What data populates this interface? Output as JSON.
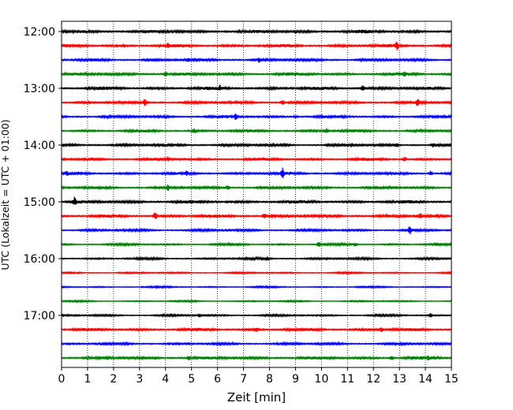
{
  "chart_data": {
    "type": "line",
    "title": "",
    "xlabel": "Zeit  [min]",
    "ylabel": "UTC (Lokalzeit = UTC + 01:00)",
    "xlim": [
      0,
      15
    ],
    "x_ticks": [
      0,
      1,
      2,
      3,
      4,
      5,
      6,
      7,
      8,
      9,
      10,
      11,
      12,
      13,
      14,
      15
    ],
    "x_tick_labels": [
      "0",
      "1",
      "2",
      "3",
      "4",
      "5",
      "6",
      "7",
      "8",
      "9",
      "10",
      "11",
      "12",
      "13",
      "14",
      "15"
    ],
    "y_tick_labels": [
      "12:00",
      "13:00",
      "14:00",
      "15:00",
      "16:00",
      "17:00"
    ],
    "y_tick_traces": [
      0,
      4,
      8,
      12,
      16,
      20
    ],
    "grid_x": true,
    "grid_style": "dotted",
    "trace_colors": [
      "#000000",
      "#ff0000",
      "#0000ff",
      "#008000"
    ],
    "traces": [
      {
        "start": "12:00",
        "color": "#000000",
        "amp": 2.4,
        "events": [
          {
            "t": 9.0,
            "a": 3
          }
        ]
      },
      {
        "start": "12:15",
        "color": "#ff0000",
        "amp": 2.2,
        "events": [
          {
            "t": 2.4,
            "a": 3
          },
          {
            "t": 4.1,
            "a": 5
          },
          {
            "t": 12.9,
            "a": 7
          }
        ]
      },
      {
        "start": "12:30",
        "color": "#0000ff",
        "amp": 2.0,
        "events": [
          {
            "t": 4.9,
            "a": 4
          },
          {
            "t": 7.6,
            "a": 4
          }
        ]
      },
      {
        "start": "12:45",
        "color": "#008000",
        "amp": 2.2,
        "events": [
          {
            "t": 4.0,
            "a": 4
          },
          {
            "t": 13.2,
            "a": 5
          }
        ]
      },
      {
        "start": "13:00",
        "color": "#000000",
        "amp": 2.3,
        "events": [
          {
            "t": 6.1,
            "a": 5
          },
          {
            "t": 11.6,
            "a": 5
          }
        ]
      },
      {
        "start": "13:15",
        "color": "#ff0000",
        "amp": 2.0,
        "events": [
          {
            "t": 3.2,
            "a": 6
          },
          {
            "t": 8.5,
            "a": 4
          },
          {
            "t": 13.7,
            "a": 6
          }
        ]
      },
      {
        "start": "13:30",
        "color": "#0000ff",
        "amp": 2.0,
        "events": [
          {
            "t": 6.7,
            "a": 5
          },
          {
            "t": 9.0,
            "a": 3
          }
        ]
      },
      {
        "start": "13:45",
        "color": "#008000",
        "amp": 2.0,
        "events": [
          {
            "t": 5.1,
            "a": 4
          },
          {
            "t": 10.2,
            "a": 4
          }
        ]
      },
      {
        "start": "14:00",
        "color": "#000000",
        "amp": 2.0,
        "events": [
          {
            "t": 12.9,
            "a": 3
          },
          {
            "t": 14.3,
            "a": 4
          }
        ]
      },
      {
        "start": "14:15",
        "color": "#ff0000",
        "amp": 2.0,
        "events": [
          {
            "t": 1.2,
            "a": 3
          },
          {
            "t": 4.1,
            "a": 4
          },
          {
            "t": 13.2,
            "a": 4
          }
        ]
      },
      {
        "start": "14:30",
        "color": "#0000ff",
        "amp": 2.0,
        "events": [
          {
            "t": 0.2,
            "a": 4
          },
          {
            "t": 4.8,
            "a": 4
          },
          {
            "t": 8.5,
            "a": 8
          },
          {
            "t": 14.2,
            "a": 4
          }
        ]
      },
      {
        "start": "14:45",
        "color": "#008000",
        "amp": 2.0,
        "events": [
          {
            "t": 4.1,
            "a": 5
          },
          {
            "t": 6.4,
            "a": 4
          }
        ]
      },
      {
        "start": "15:00",
        "color": "#000000",
        "amp": 2.3,
        "events": [
          {
            "t": 0.5,
            "a": 7
          },
          {
            "t": 9.5,
            "a": 3
          }
        ]
      },
      {
        "start": "15:15",
        "color": "#ff0000",
        "amp": 2.2,
        "events": [
          {
            "t": 3.6,
            "a": 6
          },
          {
            "t": 7.8,
            "a": 4
          },
          {
            "t": 8.1,
            "a": 4
          },
          {
            "t": 13.8,
            "a": 5
          }
        ]
      },
      {
        "start": "15:30",
        "color": "#0000ff",
        "amp": 1.8,
        "events": [
          {
            "t": 13.4,
            "a": 7
          }
        ]
      },
      {
        "start": "15:45",
        "color": "#008000",
        "amp": 1.6,
        "events": [
          {
            "t": 9.9,
            "a": 4
          },
          {
            "t": 11.3,
            "a": 3
          },
          {
            "t": 14.4,
            "a": 3
          }
        ]
      },
      {
        "start": "16:00",
        "color": "#000000",
        "amp": 1.6,
        "events": [
          {
            "t": 7.9,
            "a": 3
          }
        ]
      },
      {
        "start": "16:15",
        "color": "#ff0000",
        "amp": 1.2,
        "events": []
      },
      {
        "start": "16:30",
        "color": "#0000ff",
        "amp": 1.2,
        "events": []
      },
      {
        "start": "16:45",
        "color": "#008000",
        "amp": 1.2,
        "events": []
      },
      {
        "start": "17:00",
        "color": "#000000",
        "amp": 1.5,
        "events": [
          {
            "t": 5.3,
            "a": 3
          },
          {
            "t": 14.2,
            "a": 3
          }
        ]
      },
      {
        "start": "17:15",
        "color": "#ff0000",
        "amp": 2.2,
        "events": [
          {
            "t": 7.5,
            "a": 4
          },
          {
            "t": 12.3,
            "a": 4
          }
        ]
      },
      {
        "start": "17:30",
        "color": "#0000ff",
        "amp": 1.8,
        "events": [
          {
            "t": 9.0,
            "a": 3
          }
        ]
      },
      {
        "start": "17:45",
        "color": "#008000",
        "amp": 2.2,
        "events": [
          {
            "t": 4.9,
            "a": 4
          },
          {
            "t": 12.7,
            "a": 4
          },
          {
            "t": 14.1,
            "a": 4
          }
        ]
      }
    ]
  }
}
